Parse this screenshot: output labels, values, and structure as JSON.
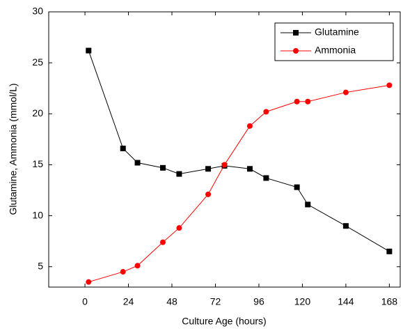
{
  "chart_data": {
    "type": "line",
    "xlabel": "Culture Age (hours)",
    "ylabel": "Glutamine, Ammonia (mmol/L)",
    "xlim": [
      -20,
      174
    ],
    "xticks": [
      0,
      24,
      48,
      72,
      96,
      120,
      144,
      168
    ],
    "ylim": [
      3,
      30
    ],
    "yticks": [
      5,
      10,
      15,
      20,
      25,
      30
    ],
    "legend": "top-right",
    "series": [
      {
        "name": "Glutamine",
        "color": "#000000",
        "marker": "square",
        "x": [
          2,
          21,
          29,
          43,
          52,
          68,
          77,
          91,
          100,
          117,
          123,
          144,
          168
        ],
        "values": [
          26.2,
          16.6,
          15.2,
          14.7,
          14.1,
          14.6,
          14.9,
          14.6,
          13.7,
          12.8,
          11.1,
          9.0,
          6.5
        ]
      },
      {
        "name": "Ammonia",
        "color": "#ff0000",
        "marker": "circle",
        "x": [
          2,
          21,
          29,
          43,
          52,
          68,
          77,
          91,
          100,
          117,
          123,
          144,
          168
        ],
        "values": [
          3.5,
          4.5,
          5.1,
          7.4,
          8.8,
          12.1,
          15.0,
          18.8,
          20.2,
          21.2,
          21.2,
          22.1,
          22.8
        ]
      }
    ]
  }
}
